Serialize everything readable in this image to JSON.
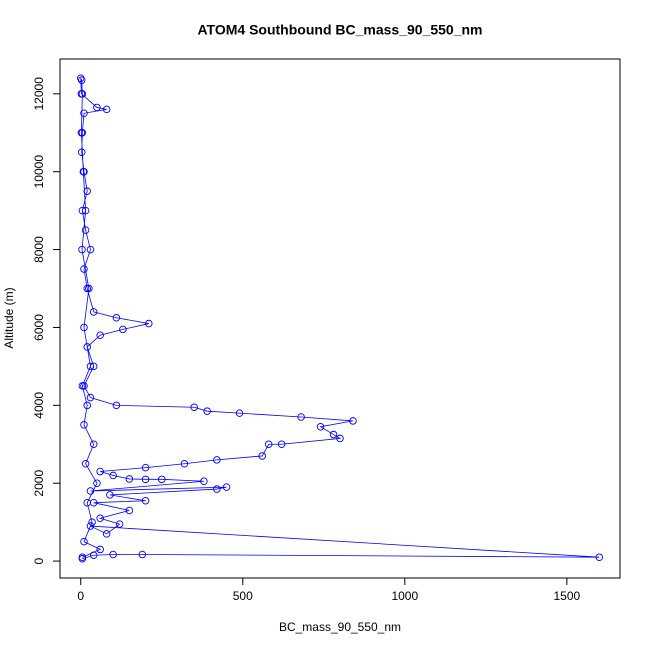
{
  "chart_data": {
    "type": "scatter",
    "title": "ATOM4 Southbound BC_mass_90_550_nm",
    "xlabel": "BC_mass_90_550_nm",
    "ylabel": "Altitude (m)",
    "x": [
      5,
      40,
      100,
      190,
      1600,
      30,
      80,
      120,
      60,
      150,
      40,
      200,
      90,
      420,
      450,
      30,
      380,
      250,
      200,
      150,
      100,
      60,
      200,
      320,
      420,
      560,
      580,
      620,
      800,
      780,
      740,
      840,
      680,
      490,
      390,
      350,
      110,
      30,
      10,
      40,
      20,
      60,
      130,
      210,
      110,
      40,
      20,
      10,
      30,
      15,
      5,
      20,
      10,
      3,
      5,
      10,
      80,
      50,
      2,
      0,
      3,
      5,
      2,
      8,
      15,
      4,
      25,
      10,
      30,
      5,
      20,
      10,
      40,
      15,
      50,
      20,
      35,
      10,
      60,
      5
    ],
    "series": [
      {
        "color": "#0000ff",
        "values": [
          60,
          150,
          170,
          170,
          100,
          900,
          700,
          950,
          1100,
          1300,
          1500,
          1550,
          1700,
          1850,
          1900,
          1800,
          2050,
          2100,
          2100,
          2110,
          2200,
          2300,
          2400,
          2500,
          2600,
          2700,
          3000,
          3000,
          3150,
          3250,
          3450,
          3600,
          3700,
          3800,
          3850,
          3950,
          4000,
          4200,
          4500,
          5000,
          5500,
          5800,
          5950,
          6100,
          6250,
          6400,
          7000,
          7500,
          8000,
          8500,
          9000,
          9500,
          10000,
          10500,
          11000,
          11500,
          11600,
          11650,
          12000,
          12400,
          12350,
          12000,
          11000,
          10000,
          9000,
          8000,
          7000,
          6000,
          5000,
          4500,
          4000,
          3500,
          3000,
          2500,
          2000,
          1500,
          1000,
          500,
          300,
          100
        ]
      }
    ],
    "xlim": [
      -64,
      1664
    ],
    "ylim": [
      -434,
      12894
    ],
    "xticks": [
      0,
      500,
      1000,
      1500
    ],
    "yticks": [
      0,
      2000,
      4000,
      6000,
      8000,
      10000,
      12000
    ]
  }
}
